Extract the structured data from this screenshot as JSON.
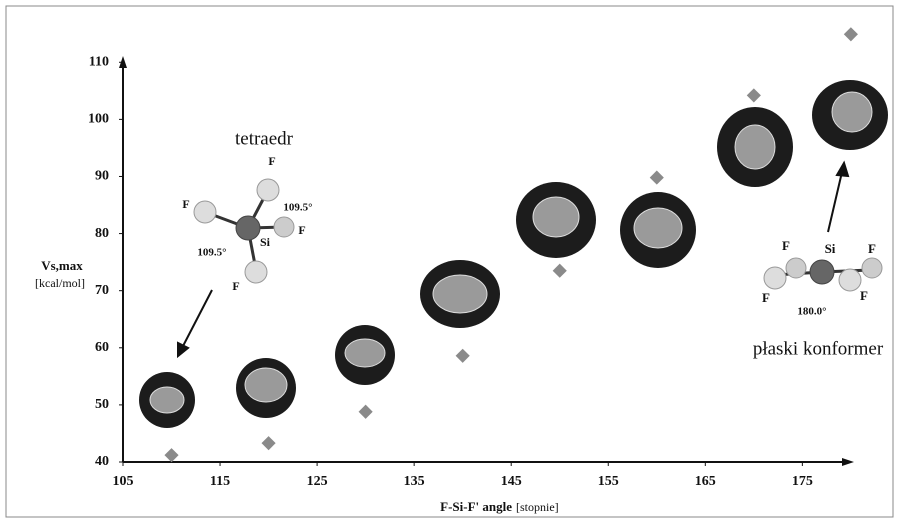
{
  "chart_data": {
    "type": "scatter",
    "x_label": "F-Si-F' angle",
    "x_unit": "[stopnie]",
    "y_label": "Vs,max",
    "y_unit": "[kcal/mol]",
    "x": [
      110,
      120,
      130,
      140,
      150,
      160,
      170,
      180
    ],
    "series": [
      {
        "color": "#8a8a8a",
        "values": [
          41.2,
          43.3,
          48.8,
          58.6,
          73.5,
          89.8,
          104.2,
          114.9
        ]
      }
    ],
    "xlim": [
      105,
      183
    ],
    "xticks": [
      105,
      115,
      125,
      135,
      145,
      155,
      165,
      175
    ],
    "ylim": [
      40,
      116
    ],
    "yticks": [
      40,
      50,
      60,
      70,
      80,
      90,
      100,
      110
    ],
    "annotations": [
      "tetraedr",
      "płaski konformer"
    ],
    "tetrahedral_labels": [
      "F",
      "F",
      "F",
      "F",
      "Si",
      "109.5°",
      "109.5°"
    ],
    "planar_labels": [
      "F",
      "F",
      "F",
      "F",
      "Si",
      "180.0°"
    ]
  }
}
